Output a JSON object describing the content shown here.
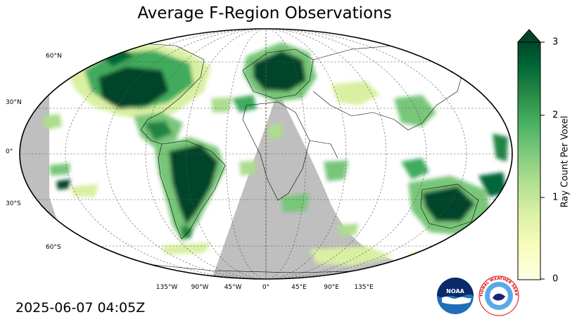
{
  "title": "Average F-Region Observations",
  "timestamp": "2025-06-07 04:05Z",
  "colorbar": {
    "label": "Ray Count Per Voxel",
    "ticks": [
      "0",
      "1",
      "2",
      "3"
    ],
    "min": 0,
    "max": 3,
    "extend": "max",
    "colormap": "YlGn",
    "colors": [
      "#ffffe5",
      "#f7fcb9",
      "#d9f0a3",
      "#addd8e",
      "#78c679",
      "#41ab5d",
      "#238443",
      "#006837",
      "#004529"
    ]
  },
  "map": {
    "projection": "Robinson",
    "night_shade_color": "#bfbfbf",
    "lat_labels": [
      "60°N",
      "30°N",
      "0°",
      "30°S",
      "60°S"
    ],
    "lon_labels": [
      "135°W",
      "90°W",
      "45°W",
      "0°",
      "45°E",
      "90°E",
      "135°E"
    ]
  },
  "logos": {
    "noaa": "NOAA",
    "nws": "NATIONAL WEATHER SERVICE"
  }
}
